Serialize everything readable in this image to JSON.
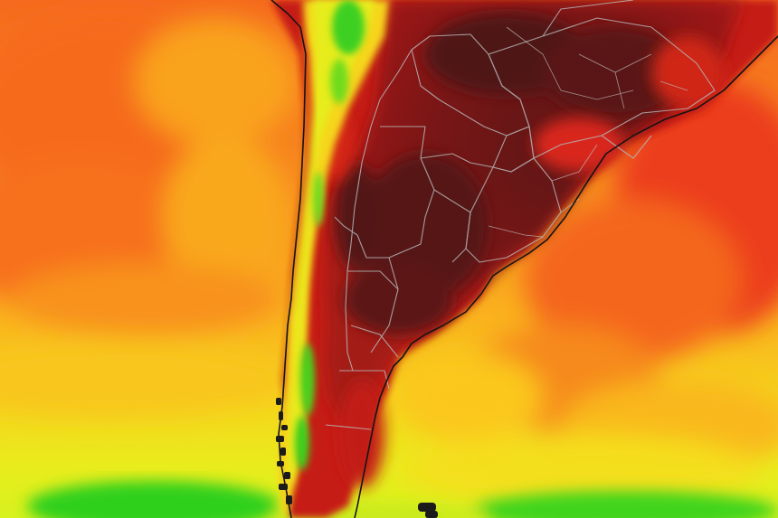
{
  "map": {
    "type": "temperature heat map",
    "region": "South America",
    "palette": {
      "extreme_heat": "#6b1414",
      "very_hot": "#b51d16",
      "hot": "#e8351a",
      "warm": "#f57a1e",
      "mild": "#fab51e",
      "cool": "#f3dc1b",
      "cold": "#e6f21e",
      "coldest": "#2ecf1e"
    },
    "borders_color": "#a9a9a9",
    "coastline_color": "#1a1a1a"
  }
}
